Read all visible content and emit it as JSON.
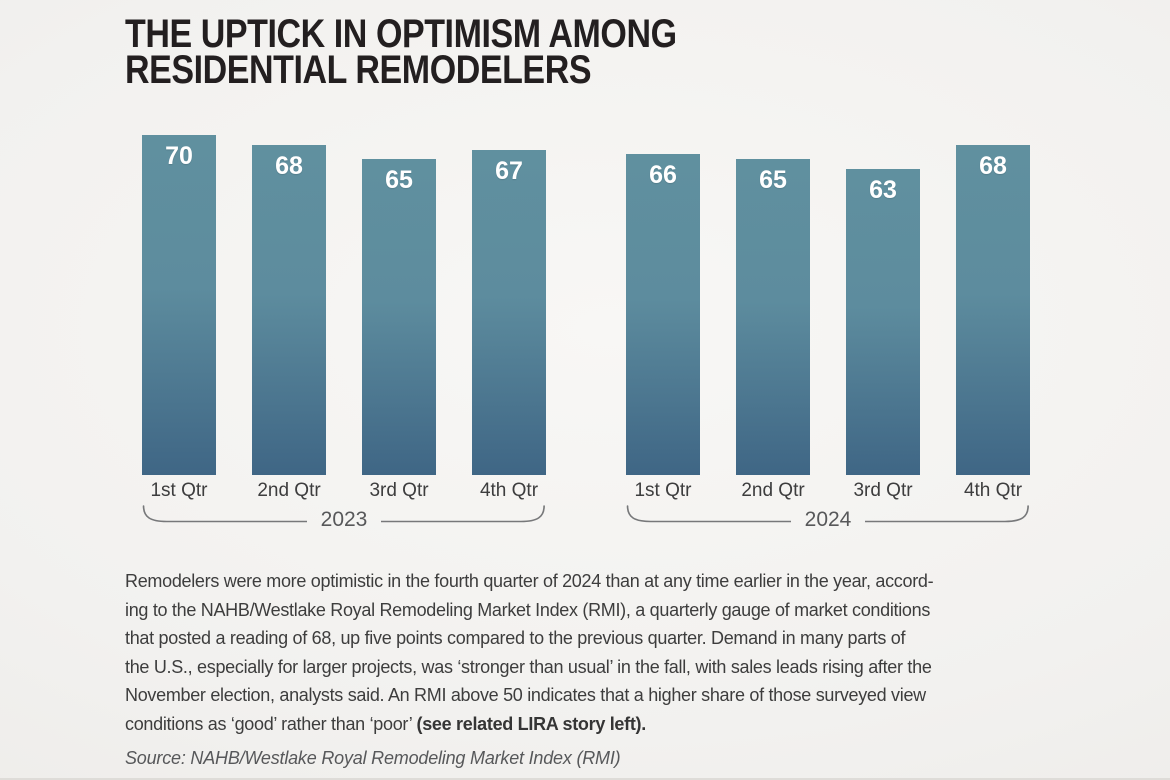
{
  "title": {
    "lines": [
      "THE UPTICK IN OPTIMISM AMONG",
      "RESIDENTIAL REMODELERS"
    ]
  },
  "chart_data": {
    "type": "bar",
    "groups": [
      {
        "year": "2023",
        "categories": [
          "1st Qtr",
          "2nd Qtr",
          "3rd Qtr",
          "4th Qtr"
        ],
        "values": [
          70,
          68,
          65,
          67
        ]
      },
      {
        "year": "2024",
        "categories": [
          "1st Qtr",
          "2nd Qtr",
          "3rd Qtr",
          "4th Qtr"
        ],
        "values": [
          66,
          65,
          63,
          68
        ]
      }
    ],
    "ylim": [
      0,
      70
    ],
    "grid": false,
    "value_labels_shown": true,
    "bar_color_top": "#60909f",
    "bar_color_mid": "#5d8c9e",
    "bar_color_bottom": "#3f6685",
    "value_label_color": "#ffffff",
    "bracket_color": "#77787a"
  },
  "body": {
    "lines": [
      "Remodelers were more optimistic in the fourth quarter of 2024 than at any time earlier in the year, accord-",
      "ing to the NAHB/Westlake Royal Remodeling Market Index (RMI), a quarterly gauge of market conditions",
      "that posted a reading of 68, up five points compared to the previous quarter. Demand in many parts of",
      "the U.S., especially for larger projects, was ‘stronger than usual’ in the fall, with sales leads rising after the",
      "November election, analysts said. An RMI above 50 indicates that a higher share of those surveyed view"
    ],
    "last_line": {
      "regular": "conditions as ‘good’ rather than ‘poor’ ",
      "bold": "(see related LIRA story left)."
    }
  },
  "source": "Source: NAHB/Westlake Royal Remodeling Market Index (RMI)"
}
